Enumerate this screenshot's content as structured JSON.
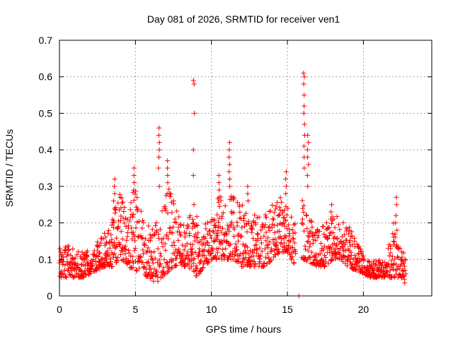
{
  "chart_data": {
    "type": "scatter",
    "title": "Day 081 of 2026, SRMTID for receiver ven1",
    "xlabel": "GPS time / hours",
    "ylabel": "SRMTID / TECUs",
    "xlim": [
      0,
      24.5
    ],
    "ylim": [
      0,
      0.7
    ],
    "xticks": [
      0,
      5,
      10,
      15,
      20
    ],
    "yticks": [
      0,
      0.1,
      0.2,
      0.3,
      0.4,
      0.5,
      0.6,
      0.7
    ],
    "ytick_labels": [
      "0",
      "0.1",
      "0.2",
      "0.3",
      "0.4",
      "0.5",
      "0.6",
      "0.7"
    ],
    "grid": true,
    "marker": "+",
    "color": "#ff0000",
    "envelope": {
      "x": [
        0,
        0.5,
        1,
        1.5,
        2,
        2.5,
        3,
        3.5,
        4,
        4.5,
        5,
        5.5,
        6,
        6.5,
        7,
        7.5,
        8,
        8.5,
        9,
        9.5,
        10,
        10.5,
        11,
        11.5,
        12,
        12.5,
        13,
        13.5,
        14,
        14.5,
        15,
        15.5,
        16,
        16.5,
        17,
        17.5,
        18,
        18.5,
        19,
        19.5,
        20,
        20.5,
        21,
        21.5,
        22,
        22.5,
        22.8
      ],
      "low": [
        0.05,
        0.05,
        0.05,
        0.05,
        0.06,
        0.07,
        0.08,
        0.08,
        0.1,
        0.08,
        0.07,
        0.06,
        0.04,
        0.04,
        0.06,
        0.08,
        0.08,
        0.08,
        0.05,
        0.08,
        0.1,
        0.1,
        0.1,
        0.1,
        0.08,
        0.08,
        0.08,
        0.08,
        0.1,
        0.12,
        0.12,
        0.08,
        0.1,
        0.09,
        0.08,
        0.08,
        0.1,
        0.1,
        0.08,
        0.07,
        0.06,
        0.05,
        0.05,
        0.05,
        0.05,
        0.05,
        0.03
      ],
      "high": [
        0.13,
        0.14,
        0.13,
        0.12,
        0.13,
        0.15,
        0.18,
        0.22,
        0.28,
        0.28,
        0.3,
        0.22,
        0.18,
        0.25,
        0.3,
        0.28,
        0.2,
        0.22,
        0.22,
        0.2,
        0.22,
        0.28,
        0.3,
        0.28,
        0.25,
        0.25,
        0.22,
        0.22,
        0.25,
        0.28,
        0.25,
        0.2,
        0.3,
        0.22,
        0.18,
        0.2,
        0.22,
        0.22,
        0.2,
        0.15,
        0.12,
        0.1,
        0.1,
        0.1,
        0.22,
        0.15,
        0.1
      ]
    },
    "spikes": [
      {
        "x": 3.6,
        "values": [
          0.32,
          0.3,
          0.28,
          0.26,
          0.24
        ]
      },
      {
        "x": 4.9,
        "values": [
          0.35,
          0.33,
          0.31,
          0.29
        ]
      },
      {
        "x": 6.55,
        "values": [
          0.46,
          0.44,
          0.42,
          0.4,
          0.38,
          0.35,
          0.3
        ]
      },
      {
        "x": 7.1,
        "values": [
          0.37,
          0.35,
          0.33,
          0.31,
          0.28
        ]
      },
      {
        "x": 8.85,
        "values": [
          0.59,
          0.58,
          0.5,
          0.4,
          0.33,
          0.25,
          0.2
        ]
      },
      {
        "x": 10.5,
        "values": [
          0.33,
          0.31,
          0.29,
          0.27
        ]
      },
      {
        "x": 11.2,
        "values": [
          0.42,
          0.4,
          0.38,
          0.36,
          0.34,
          0.32,
          0.3
        ]
      },
      {
        "x": 12.4,
        "values": [
          0.3,
          0.28,
          0.26
        ]
      },
      {
        "x": 14.9,
        "values": [
          0.34,
          0.32,
          0.3,
          0.28
        ]
      },
      {
        "x": 16.1,
        "values": [
          0.61,
          0.6,
          0.58,
          0.55,
          0.52,
          0.5,
          0.47,
          0.44,
          0.41,
          0.38,
          0.35
        ]
      },
      {
        "x": 16.35,
        "values": [
          0.44,
          0.42,
          0.4,
          0.38,
          0.36,
          0.33,
          0.3
        ]
      },
      {
        "x": 17.9,
        "values": [
          0.25,
          0.23
        ]
      },
      {
        "x": 22.15,
        "values": [
          0.27,
          0.25,
          0.22,
          0.2
        ]
      }
    ],
    "isolated_point": {
      "x": 15.75,
      "y": 0.0
    }
  }
}
